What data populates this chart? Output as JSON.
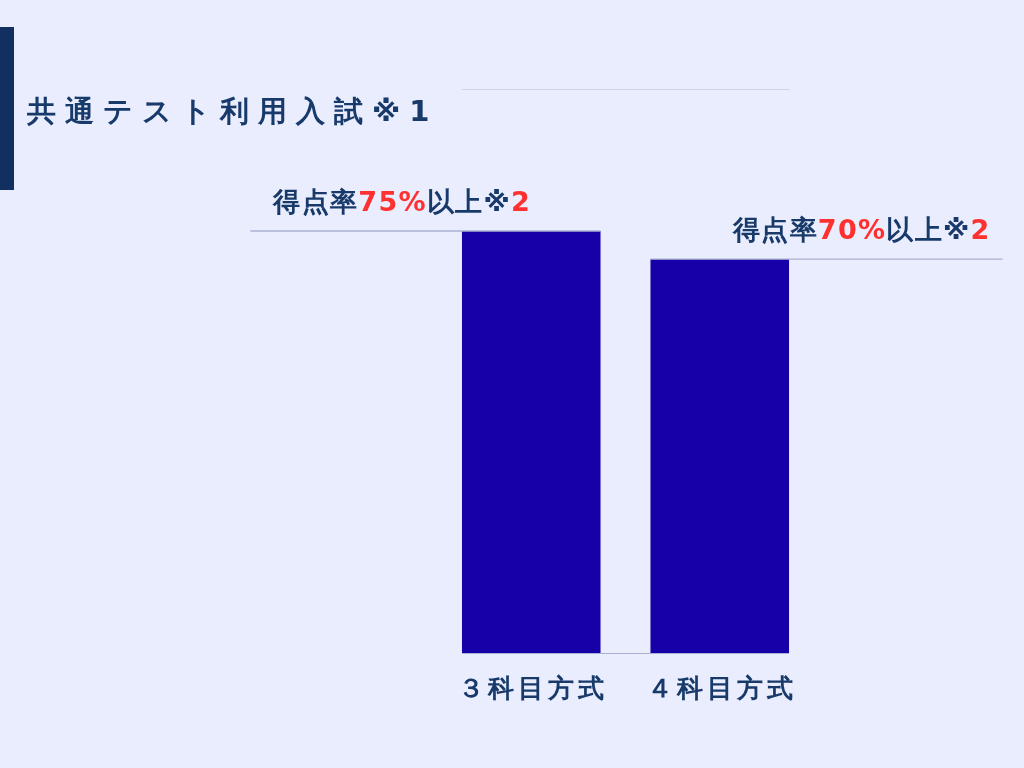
{
  "chart_data": {
    "type": "bar",
    "title": "共通テスト利用入試※1",
    "categories": [
      "３科目方式",
      "４科目方式"
    ],
    "values": [
      75,
      70
    ],
    "color": "#1800a8",
    "value_labels": [
      "得点率75%以上※2",
      "得点率70%以上※2"
    ]
  }
}
